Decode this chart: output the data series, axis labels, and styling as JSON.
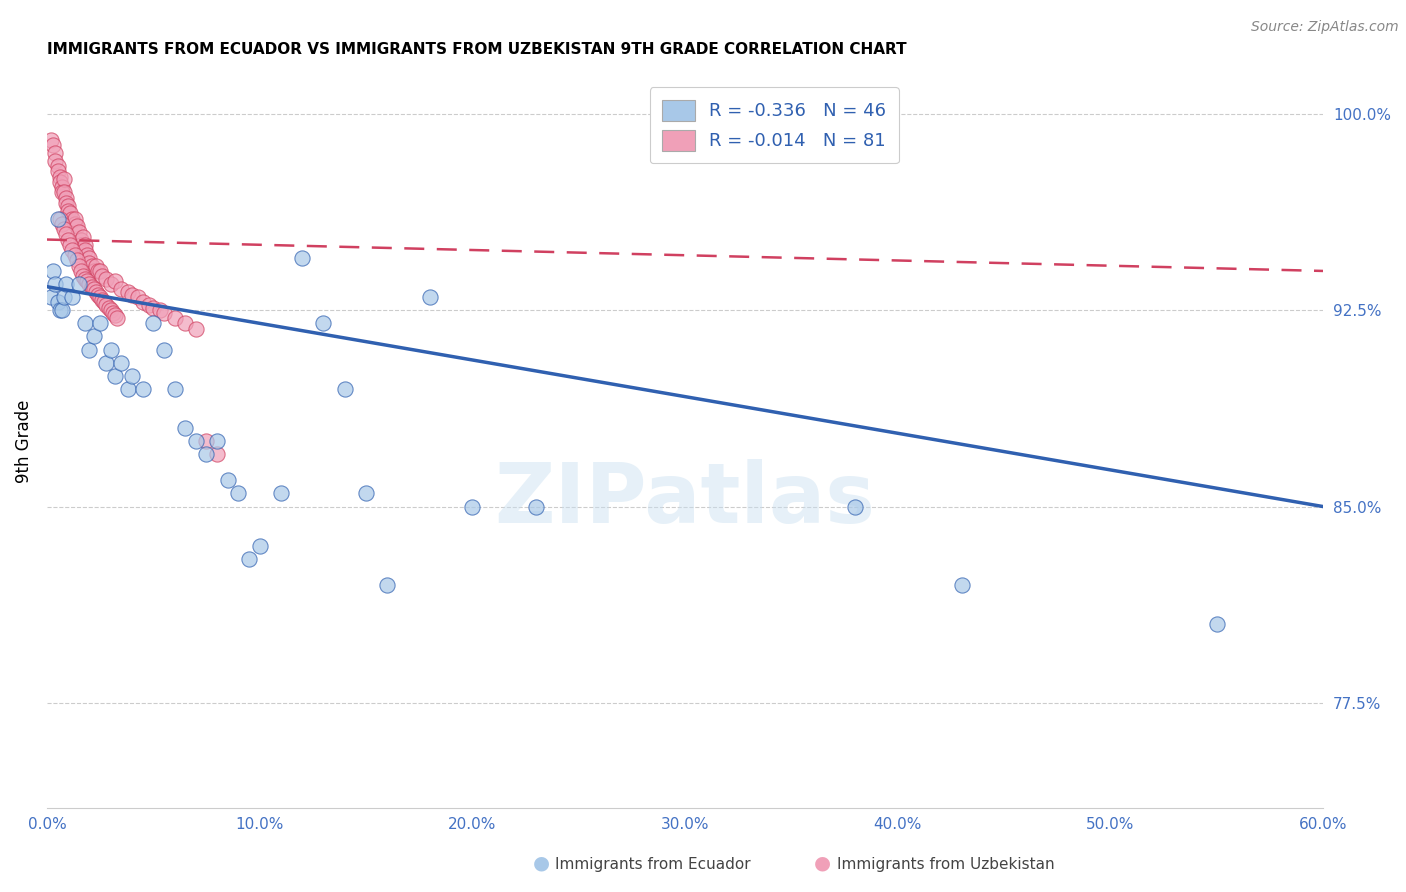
{
  "title": "IMMIGRANTS FROM ECUADOR VS IMMIGRANTS FROM UZBEKISTAN 9TH GRADE CORRELATION CHART",
  "source": "Source: ZipAtlas.com",
  "xlabel_ticks": [
    "0.0%",
    "10.0%",
    "20.0%",
    "30.0%",
    "40.0%",
    "50.0%",
    "60.0%"
  ],
  "xlabel_tick_vals": [
    0.0,
    0.1,
    0.2,
    0.3,
    0.4,
    0.5,
    0.6
  ],
  "ylabel_ticks": [
    "77.5%",
    "85.0%",
    "92.5%",
    "100.0%"
  ],
  "ylabel_tick_vals": [
    0.775,
    0.85,
    0.925,
    1.0
  ],
  "ylabel": "9th Grade",
  "xmin": 0.0,
  "xmax": 0.6,
  "ymin": 0.735,
  "ymax": 1.015,
  "legend_labels": [
    "Immigrants from Ecuador",
    "Immigrants from Uzbekistan"
  ],
  "legend_r": [
    "-0.336",
    "-0.014"
  ],
  "legend_n": [
    "46",
    "81"
  ],
  "ecuador_color": "#a8c8e8",
  "uzbekistan_color": "#f0a0b8",
  "ecuador_line_color": "#3060b0",
  "uzbekistan_line_color": "#d04060",
  "watermark": "ZIPatlas",
  "ecuador_points_x": [
    0.002,
    0.003,
    0.004,
    0.005,
    0.005,
    0.006,
    0.007,
    0.008,
    0.009,
    0.01,
    0.012,
    0.015,
    0.018,
    0.02,
    0.022,
    0.025,
    0.028,
    0.03,
    0.032,
    0.035,
    0.038,
    0.04,
    0.045,
    0.05,
    0.055,
    0.06,
    0.065,
    0.07,
    0.075,
    0.08,
    0.085,
    0.09,
    0.095,
    0.1,
    0.11,
    0.12,
    0.13,
    0.14,
    0.15,
    0.16,
    0.18,
    0.2,
    0.23,
    0.38,
    0.43,
    0.55
  ],
  "ecuador_points_y": [
    0.93,
    0.94,
    0.935,
    0.96,
    0.928,
    0.925,
    0.925,
    0.93,
    0.935,
    0.945,
    0.93,
    0.935,
    0.92,
    0.91,
    0.915,
    0.92,
    0.905,
    0.91,
    0.9,
    0.905,
    0.895,
    0.9,
    0.895,
    0.92,
    0.91,
    0.895,
    0.88,
    0.875,
    0.87,
    0.875,
    0.86,
    0.855,
    0.83,
    0.835,
    0.855,
    0.945,
    0.92,
    0.895,
    0.855,
    0.82,
    0.93,
    0.85,
    0.85,
    0.85,
    0.82,
    0.805
  ],
  "uzbekistan_points_x": [
    0.002,
    0.003,
    0.004,
    0.004,
    0.005,
    0.005,
    0.006,
    0.006,
    0.007,
    0.007,
    0.008,
    0.008,
    0.009,
    0.009,
    0.01,
    0.01,
    0.011,
    0.012,
    0.013,
    0.013,
    0.014,
    0.015,
    0.016,
    0.016,
    0.017,
    0.018,
    0.018,
    0.019,
    0.02,
    0.02,
    0.021,
    0.022,
    0.023,
    0.024,
    0.025,
    0.026,
    0.028,
    0.03,
    0.032,
    0.035,
    0.038,
    0.04,
    0.043,
    0.045,
    0.048,
    0.05,
    0.053,
    0.055,
    0.06,
    0.065,
    0.07,
    0.075,
    0.08,
    0.006,
    0.007,
    0.008,
    0.009,
    0.01,
    0.011,
    0.012,
    0.013,
    0.014,
    0.015,
    0.016,
    0.017,
    0.018,
    0.019,
    0.02,
    0.021,
    0.022,
    0.023,
    0.024,
    0.025,
    0.026,
    0.027,
    0.028,
    0.029,
    0.03,
    0.031,
    0.032,
    0.033
  ],
  "uzbekistan_points_y": [
    0.99,
    0.988,
    0.985,
    0.982,
    0.98,
    0.978,
    0.976,
    0.974,
    0.972,
    0.97,
    0.975,
    0.97,
    0.968,
    0.966,
    0.965,
    0.963,
    0.962,
    0.96,
    0.958,
    0.96,
    0.957,
    0.955,
    0.952,
    0.95,
    0.953,
    0.95,
    0.948,
    0.946,
    0.945,
    0.943,
    0.942,
    0.94,
    0.942,
    0.94,
    0.94,
    0.938,
    0.937,
    0.935,
    0.936,
    0.933,
    0.932,
    0.931,
    0.93,
    0.928,
    0.927,
    0.926,
    0.925,
    0.924,
    0.922,
    0.92,
    0.918,
    0.875,
    0.87,
    0.96,
    0.958,
    0.956,
    0.954,
    0.952,
    0.95,
    0.948,
    0.946,
    0.944,
    0.942,
    0.94,
    0.938,
    0.937,
    0.936,
    0.935,
    0.934,
    0.933,
    0.932,
    0.931,
    0.93,
    0.929,
    0.928,
    0.927,
    0.926,
    0.925,
    0.924,
    0.923,
    0.922
  ],
  "ecuador_trend_x": [
    0.0,
    0.6
  ],
  "ecuador_trend_y": [
    0.934,
    0.85
  ],
  "uzbekistan_trend_x": [
    0.0,
    0.6
  ],
  "uzbekistan_trend_y": [
    0.952,
    0.94
  ]
}
